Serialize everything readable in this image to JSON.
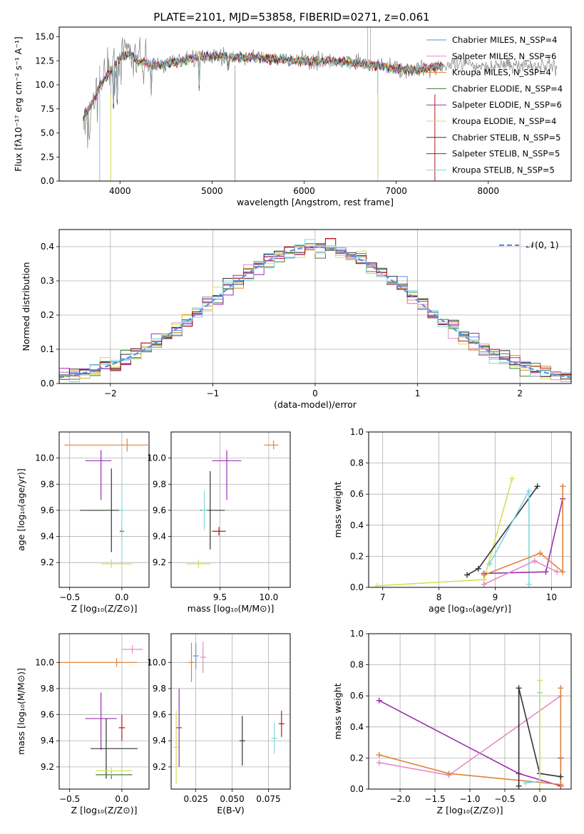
{
  "chart_data": [
    {
      "type": "line",
      "title": "PLATE=2101, MJD=53858, FIBERID=0271, z=0.061",
      "xlabel": "wavelength [Angstrom, rest frame]",
      "ylabel": "Flux [fλ10⁻¹⁷ erg cm⁻² s⁻¹ A⁻¹]",
      "xlim": [
        3340,
        8900
      ],
      "ylim": [
        0,
        16
      ],
      "xticks": [
        4000,
        5000,
        6000,
        7000,
        8000
      ],
      "yticks": [
        0.0,
        2.5,
        5.0,
        7.5,
        10.0,
        12.5,
        15.0
      ],
      "legend_position": "top-right",
      "series": [
        {
          "name": "Chabrier MILES, N_SSP=4",
          "color": "#5b8ee6"
        },
        {
          "name": "Salpeter MILES, N_SSP=6",
          "color": "#e58ac8"
        },
        {
          "name": "Kroupa MILES, N_SSP=4",
          "color": "#e0823a"
        },
        {
          "name": "Chabrier ELODIE, N_SSP=4",
          "color": "#3c7f3c"
        },
        {
          "name": "Salpeter ELODIE, N_SSP=6",
          "color": "#9b2fb0"
        },
        {
          "name": "Kroupa ELODIE, N_SSP=4",
          "color": "#d4e05a"
        },
        {
          "name": "Chabrier STELIB, N_SSP=5",
          "color": "#333333"
        },
        {
          "name": "Salpeter STELIB, N_SSP=5",
          "color": "#b01818"
        },
        {
          "name": "Kroupa STELIB, N_SSP=5",
          "color": "#7dd8e0"
        }
      ],
      "continuum": {
        "x": [
          3600,
          3700,
          3800,
          3900,
          4000,
          4100,
          4200,
          4400,
          4600,
          4800,
          5000,
          5200,
          5500,
          5800,
          6000,
          6200,
          6500,
          6800,
          7000,
          7200,
          7400,
          7500
        ],
        "y": [
          6.5,
          8.2,
          10.2,
          11.5,
          12.8,
          13.2,
          12.5,
          12.0,
          12.3,
          12.8,
          13.0,
          12.9,
          12.8,
          12.6,
          12.5,
          12.5,
          12.3,
          12.0,
          11.7,
          11.5,
          11.8,
          12.0
        ]
      },
      "data_extends_to": 8750
    },
    {
      "type": "bar",
      "xlabel": "(data-model)/error",
      "ylabel": "Normed distribution",
      "xlim": [
        -2.5,
        2.5
      ],
      "ylim": [
        0,
        0.45
      ],
      "xticks": [
        -2,
        -1,
        0,
        1,
        2
      ],
      "yticks": [
        0.0,
        0.1,
        0.2,
        0.3,
        0.4
      ],
      "bin_width": 0.1,
      "legend": "𝒩(0, 1)",
      "gaussian": {
        "mean": 0,
        "sigma": 1,
        "color": "#5b8ee6"
      }
    },
    {
      "type": "scatter",
      "xlabel": "Z [log₁₀(Z/Z⊙)]",
      "ylabel": "age [log₁₀(age/yr)]",
      "xlim": [
        -0.6,
        0.26
      ],
      "ylim": [
        9.01,
        10.2
      ],
      "xticks": [
        -0.5,
        0.0
      ],
      "yticks": [
        9.2,
        9.4,
        9.6,
        9.8,
        10.0
      ],
      "errorbars": [
        {
          "x": 0.05,
          "y": 10.1,
          "xerr": [
            0.6,
            0.2
          ],
          "yerr": [
            0.05,
            0.05
          ],
          "color": "#e0823a"
        },
        {
          "x": -0.2,
          "y": 9.98,
          "xerr": [
            0.15,
            0.1
          ],
          "yerr": [
            0.3,
            0.08
          ],
          "color": "#9b2fb0"
        },
        {
          "x": -0.1,
          "y": 9.6,
          "xerr": [
            0.3,
            0.1
          ],
          "yerr": [
            0.32,
            0.32
          ],
          "color": "#333333"
        },
        {
          "x": 0.0,
          "y": 9.44,
          "xerr": [
            0.02,
            0.02
          ],
          "yerr": [
            0.0,
            0.0
          ],
          "color": "#b01818"
        },
        {
          "x": -0.1,
          "y": 9.19,
          "xerr": [
            0.1,
            0.2
          ],
          "yerr": [
            0.0,
            0.0
          ],
          "color": "#d4e05a"
        },
        {
          "x": 0.0,
          "y": 9.6,
          "xerr": [
            0.0,
            0.0
          ],
          "yerr": [
            0.4,
            0.2
          ],
          "color": "#7dd8e0"
        }
      ]
    },
    {
      "type": "scatter",
      "xlabel": "mass [log₁₀(M/M⊙)]",
      "ylabel": "",
      "xlim": [
        9.0,
        10.22
      ],
      "ylim": [
        9.01,
        10.2
      ],
      "xticks": [
        9.5,
        10.0
      ],
      "yticks": [
        9.2,
        9.4,
        9.6,
        9.8,
        10.0
      ],
      "errorbars": [
        {
          "x": 10.05,
          "y": 10.1,
          "xerr": [
            0.1,
            0.05
          ],
          "yerr": [
            0.0,
            0.0
          ],
          "color": "#e0823a"
        },
        {
          "x": 9.57,
          "y": 9.98,
          "xerr": [
            0.15,
            0.15
          ],
          "yerr": [
            0.3,
            0.08
          ],
          "color": "#9b2fb0"
        },
        {
          "x": 9.4,
          "y": 9.6,
          "xerr": [
            0.1,
            0.15
          ],
          "yerr": [
            0.3,
            0.3
          ],
          "color": "#333333"
        },
        {
          "x": 9.49,
          "y": 9.44,
          "xerr": [
            0.07,
            0.07
          ],
          "yerr": [
            0.0,
            0.0
          ],
          "color": "#b01818"
        },
        {
          "x": 9.28,
          "y": 9.19,
          "xerr": [
            0.13,
            0.13
          ],
          "yerr": [
            0.0,
            0.0
          ],
          "color": "#d4e05a"
        },
        {
          "x": 9.34,
          "y": 9.6,
          "xerr": [
            0.0,
            0.0
          ],
          "yerr": [
            0.15,
            0.15
          ],
          "color": "#7dd8e0"
        }
      ]
    },
    {
      "type": "line",
      "xlabel": "age  [log₁₀(age/yr)]",
      "ylabel": "mass weight",
      "xlim": [
        6.75,
        10.35
      ],
      "ylim": [
        0,
        1.0
      ],
      "xticks": [
        7,
        8,
        9,
        10
      ],
      "yticks": [
        0.0,
        0.2,
        0.4,
        0.6,
        0.8,
        1.0
      ],
      "series": [
        {
          "color": "#d4e05a",
          "x": [
            6.9,
            8.8,
            9.3
          ],
          "y": [
            0.01,
            0.05,
            0.7
          ]
        },
        {
          "color": "#333333",
          "x": [
            8.5,
            8.7,
            9.75
          ],
          "y": [
            0.08,
            0.12,
            0.65
          ]
        },
        {
          "color": "#7dd8e0",
          "x": [
            8.9,
            9.6,
            9.6
          ],
          "y": [
            0.15,
            0.62,
            0.02
          ]
        },
        {
          "color": "#9b2fb0",
          "x": [
            8.8,
            9.9,
            10.2
          ],
          "y": [
            0.09,
            0.1,
            0.57
          ]
        },
        {
          "color": "#e58ac8",
          "x": [
            8.8,
            9.7,
            10.1
          ],
          "y": [
            0.02,
            0.17,
            0.1
          ]
        },
        {
          "color": "#e0823a",
          "x": [
            8.8,
            9.8,
            10.2,
            10.2
          ],
          "y": [
            0.08,
            0.22,
            0.1,
            0.65
          ]
        }
      ]
    },
    {
      "type": "scatter",
      "xlabel": "Z [log₁₀(Z/Z⊙)]",
      "ylabel": "mass [log₁₀(M/M⊙)]",
      "xlim": [
        -0.6,
        0.26
      ],
      "ylim": [
        9.03,
        10.22
      ],
      "xticks": [
        -0.5,
        0.0
      ],
      "yticks": [
        9.2,
        9.4,
        9.6,
        9.8,
        10.0
      ],
      "errorbars": [
        {
          "x": -0.05,
          "y": 10.0,
          "xerr": [
            0.55,
            0.2
          ],
          "yerr": [
            0.0,
            0.0
          ],
          "color": "#e0823a"
        },
        {
          "x": 0.1,
          "y": 10.1,
          "xerr": [
            0.1,
            0.1
          ],
          "yerr": [
            0.0,
            0.0
          ],
          "color": "#e58ac8"
        },
        {
          "x": -0.2,
          "y": 9.57,
          "xerr": [
            0.15,
            0.15
          ],
          "yerr": [
            0.24,
            0.2
          ],
          "color": "#9b2fb0"
        },
        {
          "x": -0.15,
          "y": 9.34,
          "xerr": [
            0.15,
            0.3
          ],
          "yerr": [
            0.23,
            0.23
          ],
          "color": "#333333"
        },
        {
          "x": -0.1,
          "y": 9.14,
          "xerr": [
            0.15,
            0.2
          ],
          "yerr": [
            0.0,
            0.0
          ],
          "color": "#3c7f3c"
        },
        {
          "x": -0.1,
          "y": 9.17,
          "xerr": [
            0.15,
            0.2
          ],
          "yerr": [
            0.0,
            0.0
          ],
          "color": "#d4e05a"
        },
        {
          "x": 0.0,
          "y": 9.5,
          "xerr": [
            0.03,
            0.03
          ],
          "yerr": [
            0.1,
            0.1
          ],
          "color": "#b01818"
        }
      ]
    },
    {
      "type": "scatter",
      "xlabel": "E(B-V)",
      "ylabel": "",
      "xlim": [
        0.008,
        0.09
      ],
      "ylim": [
        9.03,
        10.22
      ],
      "xtick_labels": [
        "0.025",
        "0.050",
        "0.075"
      ],
      "xticks": [
        0.025,
        0.05,
        0.075
      ],
      "yticks": [
        9.2,
        9.4,
        9.6,
        9.8,
        10.0
      ],
      "errorbars": [
        {
          "x": 0.0115,
          "y": 9.35,
          "xerr": [
            0,
            0
          ],
          "yerr": [
            0.28,
            0.28
          ],
          "color": "#d4e05a"
        },
        {
          "x": 0.0135,
          "y": 9.5,
          "xerr": [
            0,
            0
          ],
          "yerr": [
            0.3,
            0.3
          ],
          "color": "#9b2fb0"
        },
        {
          "x": 0.022,
          "y": 10.0,
          "xerr": [
            0,
            0
          ],
          "yerr": [
            0.15,
            0.15
          ],
          "color": "#e0823a"
        },
        {
          "x": 0.025,
          "y": 10.05,
          "xerr": [
            0,
            0
          ],
          "yerr": [
            0.1,
            0.1
          ],
          "color": "#5b8ee6"
        },
        {
          "x": 0.03,
          "y": 10.04,
          "xerr": [
            0,
            0
          ],
          "yerr": [
            0.12,
            0.12
          ],
          "color": "#e58ac8"
        },
        {
          "x": 0.057,
          "y": 9.4,
          "xerr": [
            0,
            0
          ],
          "yerr": [
            0.19,
            0.19
          ],
          "color": "#333333"
        },
        {
          "x": 0.079,
          "y": 9.42,
          "xerr": [
            0,
            0
          ],
          "yerr": [
            0.12,
            0.12
          ],
          "color": "#7dd8e0"
        },
        {
          "x": 0.084,
          "y": 9.53,
          "xerr": [
            0,
            0
          ],
          "yerr": [
            0.1,
            0.1
          ],
          "color": "#b01818"
        }
      ]
    },
    {
      "type": "line",
      "xlabel": "Z [log₁₀(Z/Z⊙)]",
      "ylabel": "mass weight",
      "xlim": [
        -2.45,
        0.45
      ],
      "ylim": [
        0,
        1.0
      ],
      "xticks": [
        -2.0,
        -1.5,
        -1.0,
        -0.5,
        0.0
      ],
      "yticks": [
        0.0,
        0.2,
        0.4,
        0.6,
        0.8,
        1.0
      ],
      "series": [
        {
          "color": "#9b2fb0",
          "x": [
            -2.3,
            -0.3,
            0.3,
            0.3
          ],
          "y": [
            0.57,
            0.1,
            0.02,
            0.2
          ]
        },
        {
          "color": "#e58ac8",
          "x": [
            -2.3,
            -1.3,
            0.3
          ],
          "y": [
            0.17,
            0.09,
            0.6
          ]
        },
        {
          "color": "#e0823a",
          "x": [
            -2.3,
            -1.3,
            0.3,
            0.3
          ],
          "y": [
            0.22,
            0.1,
            0.03,
            0.65
          ]
        },
        {
          "color": "#333333",
          "x": [
            -0.3,
            -0.3,
            0.0,
            0.3
          ],
          "y": [
            0.02,
            0.65,
            0.1,
            0.08
          ]
        },
        {
          "color": "#7dd8e0",
          "x": [
            0.0,
            0.0,
            -0.2
          ],
          "y": [
            0.62,
            0.05,
            0.04
          ]
        },
        {
          "color": "#d4e05a",
          "x": [
            0.0,
            0.0
          ],
          "y": [
            0.7,
            0.0
          ]
        }
      ]
    }
  ]
}
